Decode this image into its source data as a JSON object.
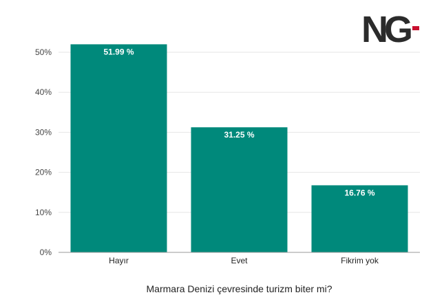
{
  "logo": {
    "text": "NG",
    "accent": "#c8102e"
  },
  "colors": {
    "bar": "#00897b",
    "label": "#ffffff"
  },
  "chart_data": {
    "type": "bar",
    "categories": [
      "Hayır",
      "Evet",
      "Fikrim yok"
    ],
    "values": [
      51.99,
      31.25,
      16.76
    ],
    "data_labels": [
      "51.99 %",
      "31.25 %",
      "16.76 %"
    ],
    "xlabel": "Marmara Denizi çevresinde turizm biter mi?",
    "ylabel": "",
    "ylim": [
      0,
      50
    ],
    "yticks": [
      0,
      10,
      20,
      30,
      40,
      50
    ],
    "ytick_labels": [
      "0%",
      "10%",
      "20%",
      "30%",
      "40%",
      "50%"
    ],
    "grid": true,
    "legend": "none"
  }
}
